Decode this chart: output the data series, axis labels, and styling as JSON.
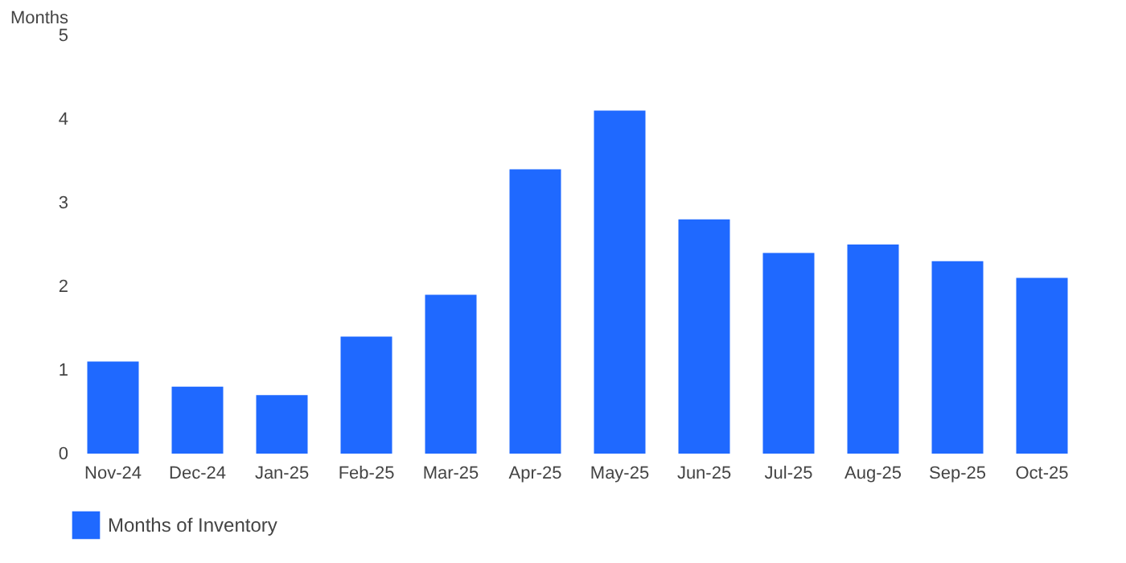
{
  "chart_data": {
    "type": "bar",
    "ylabel": "Months",
    "categories": [
      "Nov-24",
      "Dec-24",
      "Jan-25",
      "Feb-25",
      "Mar-25",
      "Apr-25",
      "May-25",
      "Jun-25",
      "Jul-25",
      "Aug-25",
      "Sep-25",
      "Oct-25"
    ],
    "series": [
      {
        "name": "Months of Inventory",
        "color": "#1f69ff",
        "values": [
          1.1,
          0.8,
          0.7,
          1.4,
          1.9,
          3.4,
          4.1,
          2.8,
          2.4,
          2.5,
          2.3,
          2.1
        ]
      }
    ],
    "ylim": [
      0,
      5
    ],
    "yticks": [
      0,
      1,
      2,
      3,
      4,
      5
    ],
    "grid": false,
    "legend": "bottom"
  }
}
